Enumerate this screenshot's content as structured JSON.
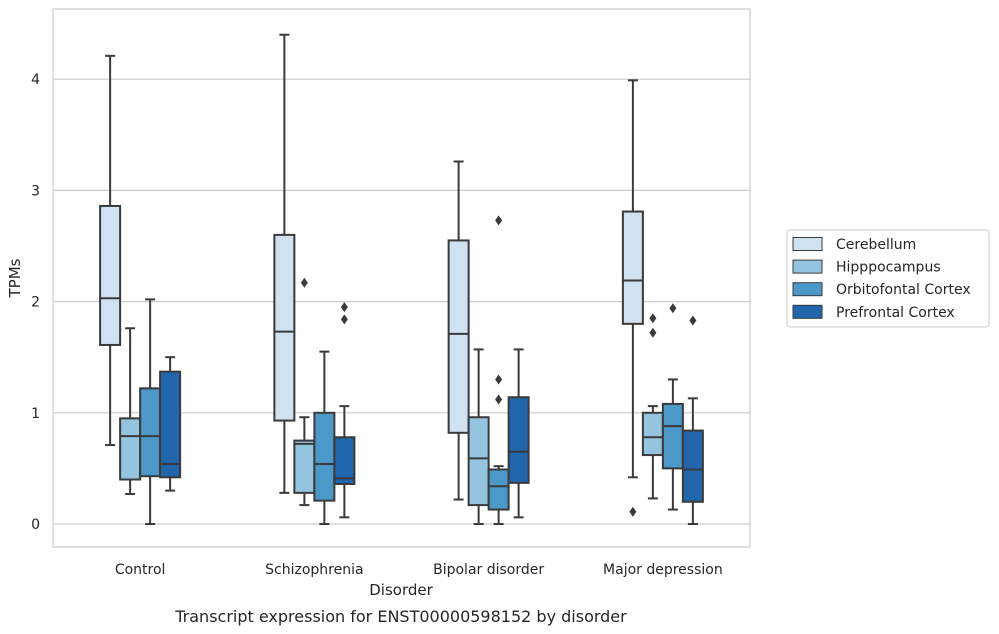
{
  "chart_data": {
    "type": "box",
    "caption": "Transcript expression for ENST00000598152 by disorder",
    "xlabel": "Disorder",
    "ylabel": "TPMs",
    "ylim": [
      -0.2,
      4.65
    ],
    "yticks": [
      0,
      1,
      2,
      3,
      4
    ],
    "grid": "horizontal",
    "legend_position": "right",
    "categories": [
      "Control",
      "Schizophrenia",
      "Bipolar disorder",
      "Major depression"
    ],
    "series": [
      {
        "name": "Cerebellum",
        "color": "#d0e1f2",
        "boxes": [
          {
            "whislo": 0.71,
            "q1": 1.61,
            "med": 2.03,
            "q3": 2.86,
            "whishi": 4.21,
            "fliers": []
          },
          {
            "whislo": 0.28,
            "q1": 0.93,
            "med": 1.73,
            "q3": 2.6,
            "whishi": 4.4,
            "fliers": []
          },
          {
            "whislo": 0.22,
            "q1": 0.82,
            "med": 1.71,
            "q3": 2.55,
            "whishi": 3.26,
            "fliers": []
          },
          {
            "whislo": 0.42,
            "q1": 1.8,
            "med": 2.19,
            "q3": 2.81,
            "whishi": 3.99,
            "fliers": [
              0.11
            ]
          }
        ]
      },
      {
        "name": "Hipppocampus",
        "color": "#94c4df",
        "boxes": [
          {
            "whislo": 0.27,
            "q1": 0.4,
            "med": 0.79,
            "q3": 0.95,
            "whishi": 1.76,
            "fliers": []
          },
          {
            "whislo": 0.17,
            "q1": 0.28,
            "med": 0.72,
            "q3": 0.75,
            "whishi": 0.96,
            "fliers": [
              2.17
            ]
          },
          {
            "whislo": 0.0,
            "q1": 0.17,
            "med": 0.59,
            "q3": 0.96,
            "whishi": 1.57,
            "fliers": []
          },
          {
            "whislo": 0.23,
            "q1": 0.62,
            "med": 0.78,
            "q3": 1.0,
            "whishi": 1.06,
            "fliers": [
              1.72,
              1.85
            ]
          }
        ]
      },
      {
        "name": "Orbitofontal Cortex",
        "color": "#4b98c9",
        "boxes": [
          {
            "whislo": 0.0,
            "q1": 0.43,
            "med": 0.79,
            "q3": 1.22,
            "whishi": 2.02,
            "fliers": []
          },
          {
            "whislo": 0.0,
            "q1": 0.21,
            "med": 0.54,
            "q3": 1.0,
            "whishi": 1.55,
            "fliers": []
          },
          {
            "whislo": 0.0,
            "q1": 0.13,
            "med": 0.34,
            "q3": 0.49,
            "whishi": 0.52,
            "fliers": [
              1.12,
              1.3,
              2.73
            ]
          },
          {
            "whislo": 0.13,
            "q1": 0.5,
            "med": 0.88,
            "q3": 1.08,
            "whishi": 1.3,
            "fliers": [
              1.94
            ]
          }
        ]
      },
      {
        "name": "Prefrontal Cortex",
        "color": "#2166ac",
        "boxes": [
          {
            "whislo": 0.3,
            "q1": 0.42,
            "med": 0.54,
            "q3": 1.37,
            "whishi": 1.5,
            "fliers": []
          },
          {
            "whislo": 0.06,
            "q1": 0.36,
            "med": 0.41,
            "q3": 0.78,
            "whishi": 1.06,
            "fliers": [
              1.84,
              1.95
            ]
          },
          {
            "whislo": 0.06,
            "q1": 0.37,
            "med": 0.65,
            "q3": 1.14,
            "whishi": 1.57,
            "fliers": []
          },
          {
            "whislo": 0.0,
            "q1": 0.2,
            "med": 0.49,
            "q3": 0.84,
            "whishi": 1.13,
            "fliers": [
              1.83
            ]
          }
        ]
      }
    ]
  }
}
